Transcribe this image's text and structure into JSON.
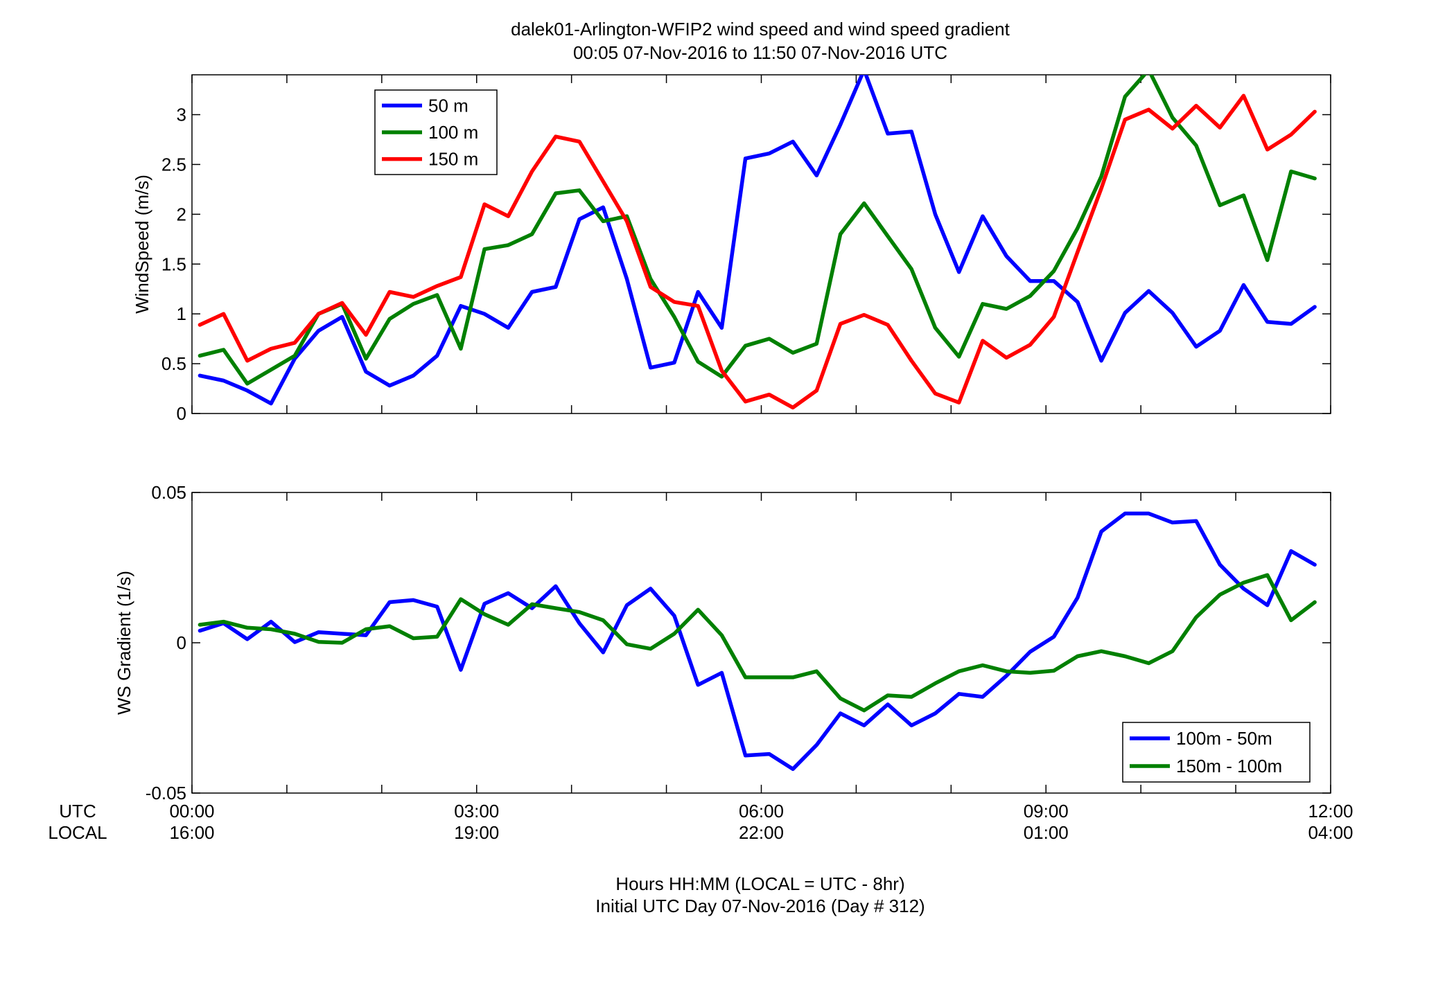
{
  "title_line1": "dalek01-Arlington-WFIP2  wind speed and wind speed gradient",
  "title_line2": "00:05 07-Nov-2016 to 11:50 07-Nov-2016  UTC",
  "colors": {
    "blue": "#0000ff",
    "green": "#008000",
    "red": "#ff0000"
  },
  "xaxis": {
    "range_hours": [
      0,
      12
    ],
    "utc_label": "UTC",
    "local_label": "LOCAL",
    "ticks_utc": [
      "00:00",
      "03:00",
      "06:00",
      "09:00",
      "12:00"
    ],
    "ticks_local": [
      "16:00",
      "19:00",
      "22:00",
      "01:00",
      "04:00"
    ],
    "xlabel_line1": "Hours HH:MM  (LOCAL = UTC - 8hr)",
    "xlabel_line2": "Initial UTC Day 07-Nov-2016 (Day # 312)"
  },
  "chart_data": [
    {
      "type": "line",
      "ylabel": "WindSpeed (m/s)",
      "ylim": [
        0,
        3.4
      ],
      "yticks": [
        "0",
        "0.5",
        "1",
        "1.5",
        "2",
        "2.5",
        "3"
      ],
      "legend_position": "top-left",
      "x_hours": [
        0.083,
        0.333,
        0.583,
        0.833,
        1.083,
        1.333,
        1.583,
        1.833,
        2.083,
        2.333,
        2.583,
        2.833,
        3.083,
        3.333,
        3.583,
        3.833,
        4.083,
        4.333,
        4.583,
        4.833,
        5.083,
        5.333,
        5.583,
        5.833,
        6.083,
        6.333,
        6.583,
        6.833,
        7.083,
        7.333,
        7.583,
        7.833,
        8.083,
        8.333,
        8.583,
        8.833,
        9.083,
        9.333,
        9.583,
        9.833,
        10.083,
        10.333,
        10.583,
        10.833,
        11.083,
        11.333,
        11.583,
        11.833
      ],
      "series": [
        {
          "name": "50 m",
          "color": "#0000ff",
          "values": [
            0.38,
            0.33,
            0.23,
            0.1,
            0.55,
            0.83,
            0.97,
            0.42,
            0.28,
            0.38,
            0.58,
            1.08,
            1.0,
            0.86,
            1.22,
            1.27,
            1.95,
            2.07,
            1.35,
            0.46,
            0.51,
            1.22,
            0.86,
            2.56,
            2.61,
            2.73,
            2.39,
            2.9,
            3.45,
            2.81,
            2.83,
            2.0,
            1.42,
            1.98,
            1.58,
            1.33,
            1.33,
            1.12,
            0.53,
            1.01,
            1.23,
            1.01,
            0.67,
            0.83,
            1.29,
            0.92,
            0.9,
            1.07
          ]
        },
        {
          "name": "100 m",
          "color": "#008000",
          "values": [
            0.58,
            0.64,
            0.3,
            0.44,
            0.58,
            1.0,
            1.1,
            0.55,
            0.95,
            1.1,
            1.19,
            0.65,
            1.65,
            1.69,
            1.8,
            2.21,
            2.24,
            1.93,
            1.98,
            1.35,
            0.97,
            0.52,
            0.37,
            0.68,
            0.75,
            0.61,
            0.7,
            1.8,
            2.11,
            1.78,
            1.45,
            0.86,
            0.57,
            1.1,
            1.05,
            1.18,
            1.43,
            1.86,
            2.38,
            3.18,
            3.45,
            2.97,
            2.69,
            2.09,
            2.19,
            1.54,
            2.43,
            2.36
          ]
        },
        {
          "name": "150 m",
          "color": "#ff0000",
          "values": [
            0.89,
            1.0,
            0.53,
            0.65,
            0.71,
            1.0,
            1.11,
            0.79,
            1.22,
            1.17,
            1.28,
            1.37,
            2.1,
            1.98,
            2.43,
            2.78,
            2.73,
            2.33,
            1.93,
            1.27,
            1.12,
            1.08,
            0.43,
            0.12,
            0.19,
            0.06,
            0.23,
            0.9,
            0.99,
            0.89,
            0.53,
            0.2,
            0.11,
            0.73,
            0.56,
            0.69,
            0.97,
            1.62,
            2.26,
            2.95,
            3.05,
            2.86,
            3.09,
            2.87,
            3.19,
            2.65,
            2.8,
            3.03
          ]
        }
      ]
    },
    {
      "type": "line",
      "ylabel": "WS Gradient (1/s)",
      "ylim": [
        -0.05,
        0.05
      ],
      "yticks": [
        "-0.05",
        "0",
        "0.05"
      ],
      "legend_position": "bottom-right",
      "x_hours": [
        0.083,
        0.333,
        0.583,
        0.833,
        1.083,
        1.333,
        1.583,
        1.833,
        2.083,
        2.333,
        2.583,
        2.833,
        3.083,
        3.333,
        3.583,
        3.833,
        4.083,
        4.333,
        4.583,
        4.833,
        5.083,
        5.333,
        5.583,
        5.833,
        6.083,
        6.333,
        6.583,
        6.833,
        7.083,
        7.333,
        7.583,
        7.833,
        8.083,
        8.333,
        8.583,
        8.833,
        9.083,
        9.333,
        9.583,
        9.833,
        10.083,
        10.333,
        10.583,
        10.833,
        11.083,
        11.333,
        11.583,
        11.833
      ],
      "series": [
        {
          "name": "100m - 50m",
          "color": "#0000ff",
          "values": [
            0.004,
            0.0065,
            0.0012,
            0.007,
            0.0002,
            0.0035,
            0.003,
            0.0025,
            0.0135,
            0.0142,
            0.012,
            -0.009,
            0.013,
            0.0165,
            0.0115,
            0.0188,
            0.0065,
            -0.0032,
            0.0125,
            0.018,
            0.009,
            -0.014,
            -0.01,
            -0.0375,
            -0.037,
            -0.042,
            -0.034,
            -0.0235,
            -0.0275,
            -0.0205,
            -0.0275,
            -0.0235,
            -0.017,
            -0.018,
            -0.011,
            -0.003,
            0.002,
            0.015,
            0.037,
            0.043,
            0.043,
            0.04,
            0.0405,
            0.026,
            0.018,
            0.0125,
            0.0305,
            0.026
          ]
        },
        {
          "name": "150m - 100m",
          "color": "#008000",
          "values": [
            0.006,
            0.007,
            0.005,
            0.0045,
            0.003,
            0.0003,
            0.0,
            0.0045,
            0.0055,
            0.0015,
            0.002,
            0.0145,
            0.0095,
            0.006,
            0.0128,
            0.0115,
            0.0102,
            0.0075,
            -0.0005,
            -0.002,
            0.003,
            0.011,
            0.0025,
            -0.0115,
            -0.0115,
            -0.0115,
            -0.0095,
            -0.0185,
            -0.0225,
            -0.0175,
            -0.018,
            -0.0135,
            -0.0095,
            -0.0075,
            -0.0095,
            -0.01,
            -0.0093,
            -0.0045,
            -0.0028,
            -0.0045,
            -0.0068,
            -0.0028,
            0.0085,
            0.016,
            0.02,
            0.0225,
            0.0075,
            0.0135
          ]
        }
      ]
    }
  ]
}
